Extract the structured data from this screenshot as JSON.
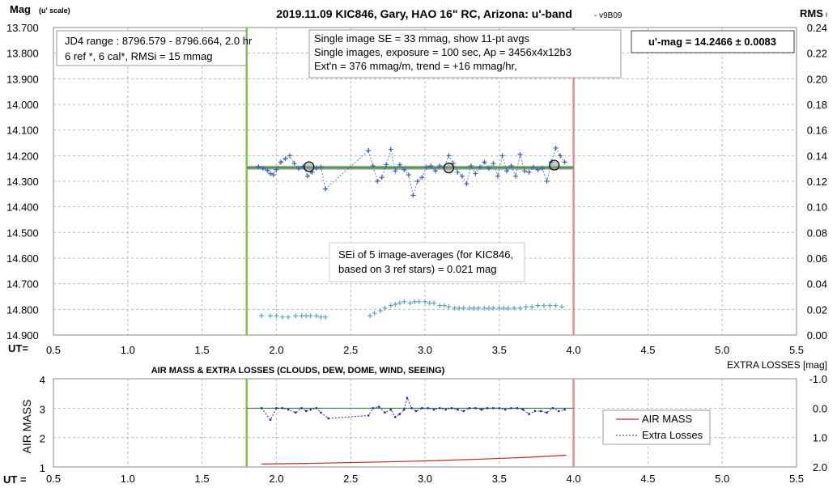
{
  "chart_data": [
    {
      "type": "scatter",
      "title": "2019.11.09 KIC846, Gary, HAO 16\" RC, Arizona: u'-band",
      "version": "- v9B09",
      "ylabel": "Mag",
      "ylabel_unit": "(u' scale)",
      "y2label": "RMS",
      "y2label_suffix": "i",
      "xlabel": "UT=",
      "xlim": [
        0.5,
        5.5
      ],
      "ylim": [
        13.7,
        14.9
      ],
      "y_inverted": true,
      "y2lim": [
        0.0,
        0.24
      ],
      "grid": true,
      "x_ticks": [
        "0.5",
        "1.0",
        "1.5",
        "2.0",
        "2.5",
        "3.0",
        "3.5",
        "4.0",
        "4.5",
        "5.0",
        "5.5"
      ],
      "y_ticks": [
        "13.700",
        "13.800",
        "13.900",
        "14.000",
        "14.100",
        "14.200",
        "14.300",
        "14.400",
        "14.500",
        "14.600",
        "14.700",
        "14.800",
        "14.900"
      ],
      "y2_ticks": [
        "0.24",
        "0.22",
        "0.20",
        "0.18",
        "0.16",
        "0.14",
        "0.12",
        "0.10",
        "0.08",
        "0.06",
        "0.04",
        "0.02",
        "0.00"
      ],
      "start_marker_x": 1.8,
      "end_marker_x": 4.0,
      "fit_line": {
        "x": [
          1.8,
          4.0
        ],
        "y": [
          14.247,
          14.247
        ]
      },
      "series": [
        {
          "name": "",
          "marker": "plus",
          "color": "#3a62b0",
          "x": [
            1.88,
            1.91,
            1.94,
            1.96,
            1.98,
            2.0,
            2.03,
            2.06,
            2.09,
            2.12,
            2.15,
            2.18,
            2.21,
            2.24,
            2.27,
            2.3,
            2.33,
            2.62,
            2.65,
            2.68,
            2.71,
            2.74,
            2.77,
            2.8,
            2.83,
            2.86,
            2.89,
            2.92,
            2.95,
            2.98,
            3.01,
            3.04,
            3.07,
            3.1,
            3.13,
            3.16,
            3.19,
            3.22,
            3.25,
            3.28,
            3.31,
            3.34,
            3.37,
            3.4,
            3.43,
            3.46,
            3.49,
            3.52,
            3.55,
            3.58,
            3.61,
            3.64,
            3.67,
            3.7,
            3.73,
            3.76,
            3.79,
            3.82,
            3.85,
            3.88,
            3.91,
            3.94
          ],
          "y": [
            14.243,
            14.25,
            14.258,
            14.27,
            14.275,
            14.255,
            14.225,
            14.212,
            14.2,
            14.23,
            14.25,
            14.242,
            14.28,
            14.265,
            14.248,
            14.245,
            14.33,
            14.18,
            14.24,
            14.3,
            14.285,
            14.235,
            14.175,
            14.26,
            14.235,
            14.255,
            14.275,
            14.355,
            14.3,
            14.285,
            14.245,
            14.24,
            14.26,
            14.24,
            14.245,
            14.2,
            14.23,
            14.265,
            14.28,
            14.31,
            14.24,
            14.27,
            14.245,
            14.225,
            14.25,
            14.23,
            14.28,
            14.2,
            14.26,
            14.24,
            14.28,
            14.195,
            14.26,
            14.265,
            14.245,
            14.255,
            14.25,
            14.3,
            14.225,
            14.17,
            14.2,
            14.225
          ]
        },
        {
          "name": "",
          "marker": "circle",
          "color": "#000000",
          "x": [
            2.22,
            3.16,
            3.87
          ],
          "y": [
            14.243,
            14.248,
            14.237
          ]
        },
        {
          "name": "",
          "axis": "right",
          "marker": "plus",
          "color": "#5aa6b4",
          "x": [
            1.9,
            1.96,
            2.0,
            2.04,
            2.08,
            2.13,
            2.17,
            2.2,
            2.23,
            2.27,
            2.3,
            2.33,
            2.63,
            2.66,
            2.7,
            2.73,
            2.77,
            2.8,
            2.83,
            2.86,
            2.9,
            2.93,
            2.96,
            3.0,
            3.03,
            3.06,
            3.1,
            3.13,
            3.16,
            3.2,
            3.23,
            3.26,
            3.3,
            3.33,
            3.36,
            3.4,
            3.43,
            3.46,
            3.5,
            3.53,
            3.56,
            3.6,
            3.64,
            3.68,
            3.72,
            3.76,
            3.8,
            3.84,
            3.88,
            3.92
          ],
          "y": [
            0.015,
            0.015,
            0.015,
            0.014,
            0.014,
            0.015,
            0.015,
            0.015,
            0.015,
            0.015,
            0.014,
            0.014,
            0.015,
            0.017,
            0.019,
            0.021,
            0.023,
            0.024,
            0.025,
            0.026,
            0.025,
            0.026,
            0.026,
            0.026,
            0.025,
            0.025,
            0.023,
            0.023,
            0.022,
            0.021,
            0.021,
            0.021,
            0.021,
            0.021,
            0.021,
            0.021,
            0.021,
            0.021,
            0.021,
            0.021,
            0.021,
            0.021,
            0.021,
            0.022,
            0.022,
            0.023,
            0.023,
            0.023,
            0.023,
            0.022
          ]
        }
      ],
      "annotations": {
        "box1": [
          "JD4 range : 8796.579 - 8796.664,  2.0  hr",
          "6 ref *, 6 cal*, RMSi = 15 mmag"
        ],
        "box2": [
          "Single image SE = 33 mmag, show  11-pt avgs",
          "Single images, exposure = 100 sec, Ap = 3456x4x12b3",
          "Ext'n = 376 mmag/m, trend =  +16 mmag/hr,"
        ],
        "box3": "u'-mag = 14.2466 ± 0.0083",
        "box4": [
          "SEi of 5 image-averages (for KIC846,",
          "based on 3 ref stars) = 0.021 mag"
        ]
      }
    },
    {
      "type": "line",
      "title": "AIR MASS & EXTRA LOSSES (CLOUDS, DEW, DOME, WIND, SEEING)",
      "ylabel": "AIR MASS",
      "y2label": "EXTRA LOSSES [mag]",
      "xlabel": "UT =",
      "xlim": [
        0.5,
        5.5
      ],
      "ylim": [
        1,
        4
      ],
      "y2lim": [
        2.0,
        -1.0
      ],
      "grid": true,
      "x_ticks": [
        "0.5",
        "1.0",
        "1.5",
        "2.0",
        "2.5",
        "3.0",
        "3.5",
        "4.0",
        "4.5",
        "5.0",
        "5.5"
      ],
      "y_ticks": [
        "1",
        "2",
        "3",
        "4"
      ],
      "y2_ticks": [
        "2.0",
        "1.0",
        "0.0",
        "-1.0"
      ],
      "start_marker_x": 1.8,
      "end_marker_x": 4.0,
      "reference_line": {
        "x": [
          1.8,
          4.0
        ],
        "y2": 0.0
      },
      "legend": {
        "position": "right",
        "entries": [
          "AIR MASS",
          "Extra Losses"
        ]
      },
      "series": [
        {
          "name": "AIR MASS",
          "color": "#c0282a",
          "x": [
            1.9,
            2.2,
            2.5,
            2.8,
            3.1,
            3.4,
            3.7,
            3.95
          ],
          "y": [
            1.1,
            1.12,
            1.15,
            1.18,
            1.22,
            1.27,
            1.33,
            1.4
          ]
        },
        {
          "name": "Extra Losses",
          "axis": "right",
          "color": "#1a2a9a",
          "x": [
            1.9,
            1.96,
            2.0,
            2.04,
            2.08,
            2.13,
            2.17,
            2.2,
            2.23,
            2.27,
            2.3,
            2.35,
            2.62,
            2.65,
            2.69,
            2.73,
            2.77,
            2.8,
            2.83,
            2.86,
            2.88,
            2.91,
            2.94,
            2.98,
            3.02,
            3.06,
            3.1,
            3.14,
            3.18,
            3.22,
            3.26,
            3.3,
            3.34,
            3.38,
            3.42,
            3.46,
            3.5,
            3.54,
            3.58,
            3.62,
            3.66,
            3.7,
            3.74,
            3.78,
            3.82,
            3.86,
            3.9,
            3.94
          ],
          "y": [
            0.0,
            0.4,
            0.0,
            0.0,
            0.05,
            0.15,
            0.0,
            0.1,
            0.05,
            0.0,
            0.15,
            0.35,
            0.25,
            0.0,
            -0.05,
            0.15,
            0.05,
            0.3,
            0.2,
            0.05,
            -0.35,
            0.0,
            0.1,
            0.0,
            0.0,
            0.05,
            0.0,
            0.05,
            0.0,
            0.05,
            0.1,
            0.0,
            0.0,
            0.05,
            0.0,
            0.0,
            0.0,
            0.05,
            0.0,
            0.0,
            0.05,
            0.2,
            0.1,
            0.1,
            0.15,
            0.0,
            0.1,
            0.05
          ]
        }
      ]
    }
  ]
}
